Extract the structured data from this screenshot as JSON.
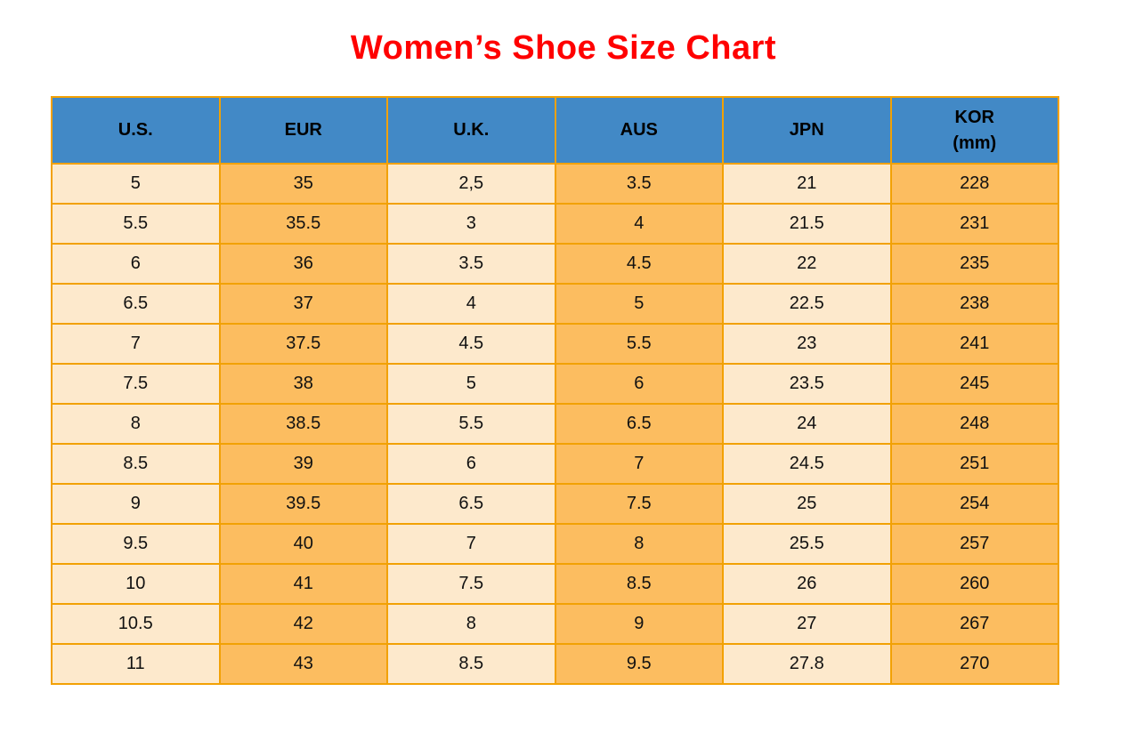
{
  "title": "Women’s Shoe Size Chart",
  "colors": {
    "title": "#FF0000",
    "header_bg": "#4289C6",
    "header_text": "#000000",
    "cell_light": "#FDE9CC",
    "cell_orange": "#FCBD60",
    "border": "#F2A104",
    "cell_text": "#111111",
    "page_bg": "#FFFFFF"
  },
  "table": {
    "headers": [
      {
        "label": "U.S."
      },
      {
        "label": "EUR"
      },
      {
        "label": "U.K."
      },
      {
        "label": "AUS"
      },
      {
        "label": "JPN"
      },
      {
        "label": "KOR",
        "sublabel": "(mm)"
      }
    ],
    "rows": [
      [
        "5",
        "35",
        "2,5",
        "3.5",
        "21",
        "228"
      ],
      [
        "5.5",
        "35.5",
        "3",
        "4",
        "21.5",
        "231"
      ],
      [
        "6",
        "36",
        "3.5",
        "4.5",
        "22",
        "235"
      ],
      [
        "6.5",
        "37",
        "4",
        "5",
        "22.5",
        "238"
      ],
      [
        "7",
        "37.5",
        "4.5",
        "5.5",
        "23",
        "241"
      ],
      [
        "7.5",
        "38",
        "5",
        "6",
        "23.5",
        "245"
      ],
      [
        "8",
        "38.5",
        "5.5",
        "6.5",
        "24",
        "248"
      ],
      [
        "8.5",
        "39",
        "6",
        "7",
        "24.5",
        "251"
      ],
      [
        "9",
        "39.5",
        "6.5",
        "7.5",
        "25",
        "254"
      ],
      [
        "9.5",
        "40",
        "7",
        "8",
        "25.5",
        "257"
      ],
      [
        "10",
        "41",
        "7.5",
        "8.5",
        "26",
        "260"
      ],
      [
        "10.5",
        "42",
        "8",
        "9",
        "27",
        "267"
      ],
      [
        "11",
        "43",
        "8.5",
        "9.5",
        "27.8",
        "270"
      ]
    ]
  },
  "chart_data": {
    "type": "table",
    "title": "Women’s Shoe Size Chart",
    "columns": [
      "U.S.",
      "EUR",
      "U.K.",
      "AUS",
      "JPN",
      "KOR (mm)"
    ],
    "rows": [
      [
        "5",
        "35",
        "2,5",
        "3.5",
        "21",
        "228"
      ],
      [
        "5.5",
        "35.5",
        "3",
        "4",
        "21.5",
        "231"
      ],
      [
        "6",
        "36",
        "3.5",
        "4.5",
        "22",
        "235"
      ],
      [
        "6.5",
        "37",
        "4",
        "5",
        "22.5",
        "238"
      ],
      [
        "7",
        "37.5",
        "4.5",
        "5.5",
        "23",
        "241"
      ],
      [
        "7.5",
        "38",
        "5",
        "6",
        "23.5",
        "245"
      ],
      [
        "8",
        "38.5",
        "5.5",
        "6.5",
        "24",
        "248"
      ],
      [
        "8.5",
        "39",
        "6",
        "7",
        "24.5",
        "251"
      ],
      [
        "9",
        "39.5",
        "6.5",
        "7.5",
        "25",
        "254"
      ],
      [
        "9.5",
        "40",
        "7",
        "8",
        "25.5",
        "257"
      ],
      [
        "10",
        "41",
        "7.5",
        "8.5",
        "26",
        "260"
      ],
      [
        "10.5",
        "42",
        "8",
        "9",
        "27",
        "267"
      ],
      [
        "11",
        "43",
        "8.5",
        "9.5",
        "27.8",
        "270"
      ]
    ],
    "layout": {
      "column_fill_pattern": [
        "light",
        "orange",
        "light",
        "orange",
        "light",
        "orange"
      ],
      "header_fill": "blue",
      "grid": true
    }
  }
}
